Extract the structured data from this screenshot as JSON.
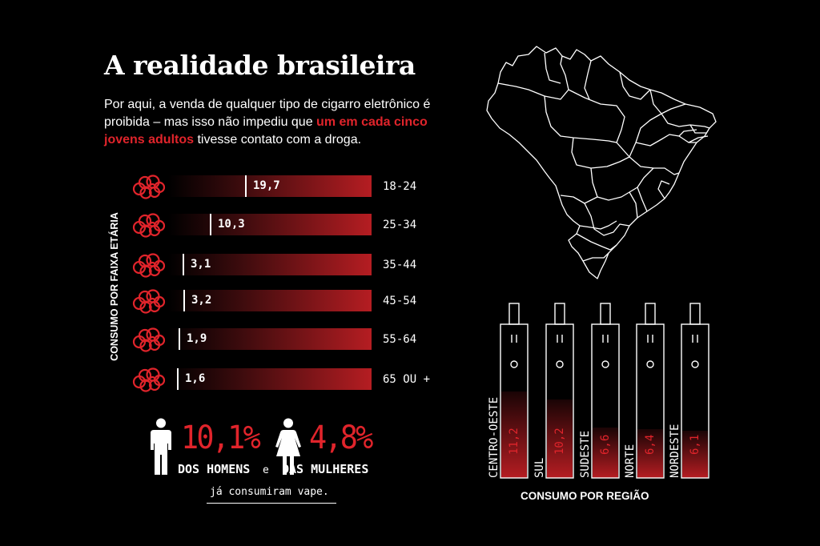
{
  "title": "A realidade brasileira",
  "intro": {
    "part1": "Por aqui, a venda de qualquer tipo de cigarro eletrônico é proibida – mas isso não impediu que ",
    "highlight": "um em cada cinco jovens adultos",
    "part2": " tivesse contato com a droga."
  },
  "colors": {
    "accent": "#e0242b",
    "bar_start": "#000000",
    "bar_end": "#b51d22",
    "text": "#ffffff",
    "background": "#000000"
  },
  "icons": {
    "age_rows": "cloud-icon",
    "men": "man-icon",
    "women": "woman-icon",
    "map": "brazil-map",
    "region": "vape-pen-icon"
  },
  "chart_data": [
    {
      "type": "bar",
      "orientation": "horizontal",
      "ylabel": "CONSUMO POR FAIXA ETÁRIA",
      "categories": [
        "18-24",
        "25-34",
        "35-44",
        "45-54",
        "55-64",
        "65 OU +"
      ],
      "values": [
        19.7,
        10.3,
        3.1,
        3.2,
        1.9,
        1.6
      ],
      "value_labels": [
        "19,7",
        "10,3",
        "3,1",
        "3,2",
        "1,9",
        "1,6"
      ]
    },
    {
      "type": "bar",
      "orientation": "vertical",
      "xlabel": "CONSUMO POR REGIÃO",
      "categories": [
        "CENTRO-OESTE",
        "SUL",
        "SUDESTE",
        "NORTE",
        "NORDESTE"
      ],
      "values": [
        11.2,
        10.2,
        6.6,
        6.4,
        6.1
      ],
      "value_labels": [
        "11,2",
        "10,2",
        "6,6",
        "6,4",
        "6,1"
      ]
    }
  ],
  "gender": {
    "men": {
      "value": "10,1%",
      "label": "DOS HOMENS"
    },
    "conjunction": "e",
    "women": {
      "value": "4,8%",
      "label": "DAS MULHERES"
    },
    "footnote": "já consumiram vape."
  }
}
